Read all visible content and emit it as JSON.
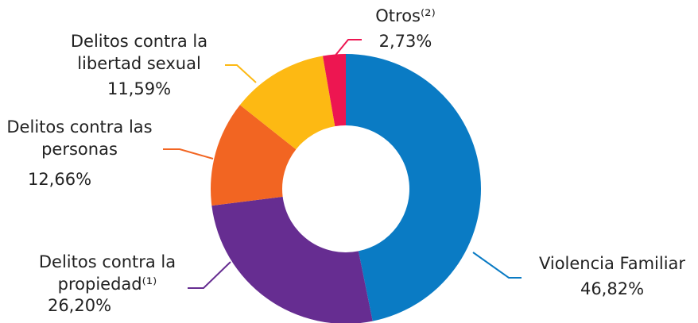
{
  "chart_data": {
    "type": "donut",
    "categories": [
      "Violencia Familiar",
      "Delitos contra la propiedad⁽¹⁾",
      "Delitos contra las personas",
      "Delitos contra la libertad sexual",
      "Otros⁽²⁾"
    ],
    "values": [
      46.82,
      26.2,
      12.66,
      11.59,
      2.73
    ],
    "value_labels": [
      "46,82%",
      "26,20%",
      "12,66%",
      "11,59%",
      "2,73%"
    ],
    "colors": [
      "#0a7bc4",
      "#662d91",
      "#f26522",
      "#fdb913",
      "#ed1651"
    ]
  }
}
